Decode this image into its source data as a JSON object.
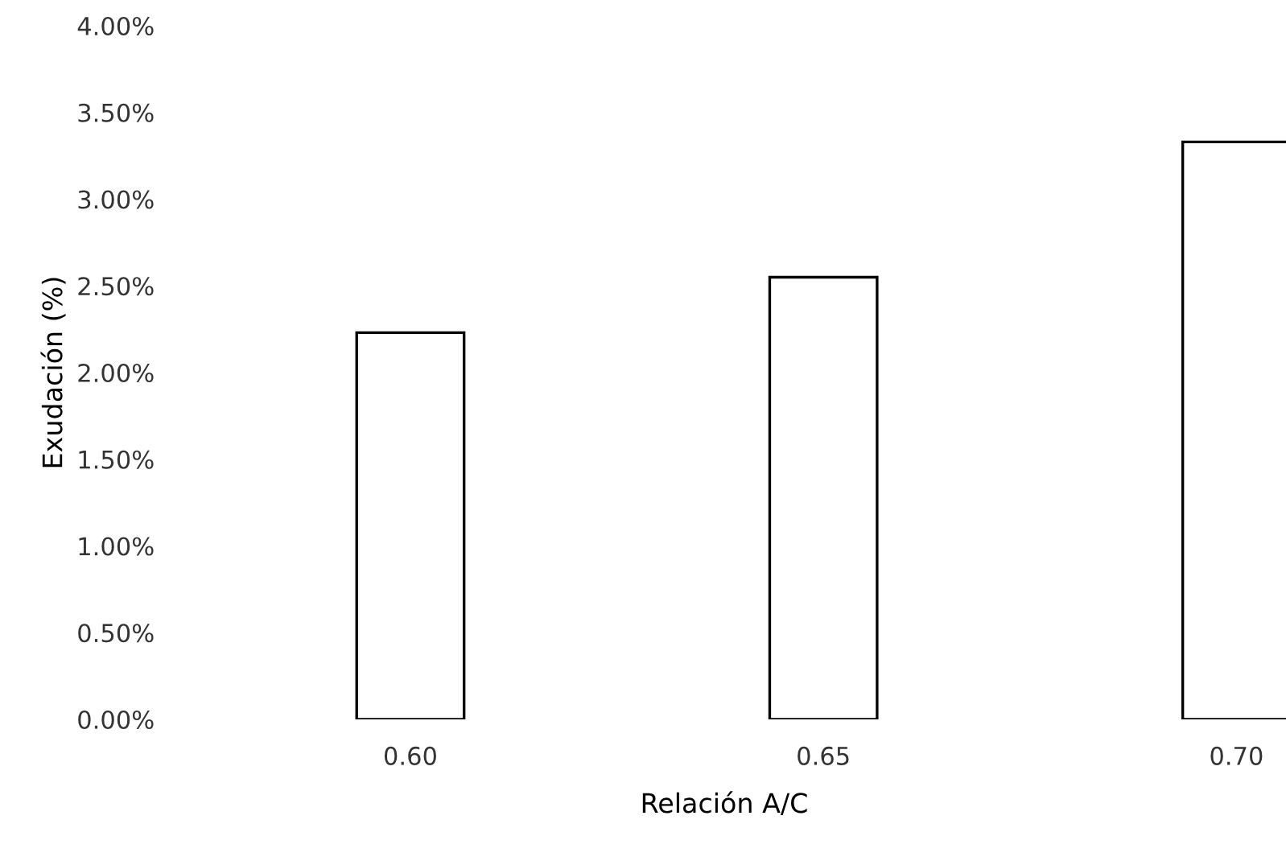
{
  "chart_data": {
    "type": "bar",
    "xlabel": "Relación A/C",
    "ylabel": "Exudación (%)",
    "categories": [
      "0.60",
      "0.65",
      "0.70"
    ],
    "values": [
      2.23,
      2.55,
      3.33
    ],
    "color": "#ffffff",
    "ylim": [
      0,
      4
    ],
    "yticks": [
      {
        "value": 0,
        "label": "0.00%"
      },
      {
        "value": 0.5,
        "label": "0.50%"
      },
      {
        "value": 1,
        "label": "1.00%"
      },
      {
        "value": 1.5,
        "label": "1.50%"
      },
      {
        "value": 2,
        "label": "2.00%"
      },
      {
        "value": 2.5,
        "label": "2.50%"
      },
      {
        "value": 3,
        "label": "3.00%"
      },
      {
        "value": 3.5,
        "label": "3.50%"
      },
      {
        "value": 4,
        "label": "4.00%"
      }
    ],
    "grid": false,
    "legend": false
  }
}
